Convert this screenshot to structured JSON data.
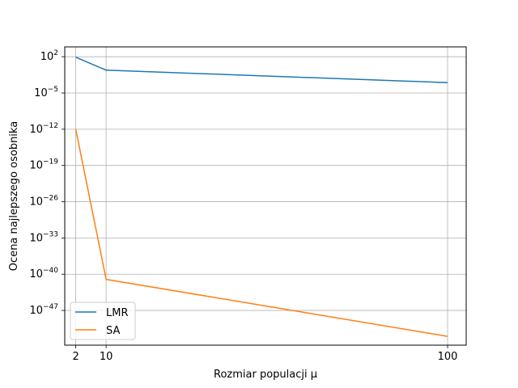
{
  "chart_data": {
    "type": "line",
    "title": "",
    "xlabel": "Rozmiar populacji μ",
    "ylabel": "Ocena najlepszego osobnika",
    "x": [
      2,
      10,
      100
    ],
    "xticks": [
      "2",
      "10",
      "100"
    ],
    "xlim": [
      -0.9,
      104.9
    ],
    "yscale": "log",
    "ylim_exp": [
      -53.7,
      3.9
    ],
    "ytick_exps": [
      "2",
      "−5",
      "−12",
      "−19",
      "−26",
      "−33",
      "−40",
      "−47"
    ],
    "grid": true,
    "legend_position": "lower-left",
    "series": [
      {
        "name": "LMR",
        "color": "#1f77b4",
        "log10_values": [
          1.9,
          -0.6,
          -3.0
        ]
      },
      {
        "name": "SA",
        "color": "#ff7f0e",
        "log10_values": [
          -12.0,
          -41.0,
          -52.0
        ]
      }
    ]
  }
}
